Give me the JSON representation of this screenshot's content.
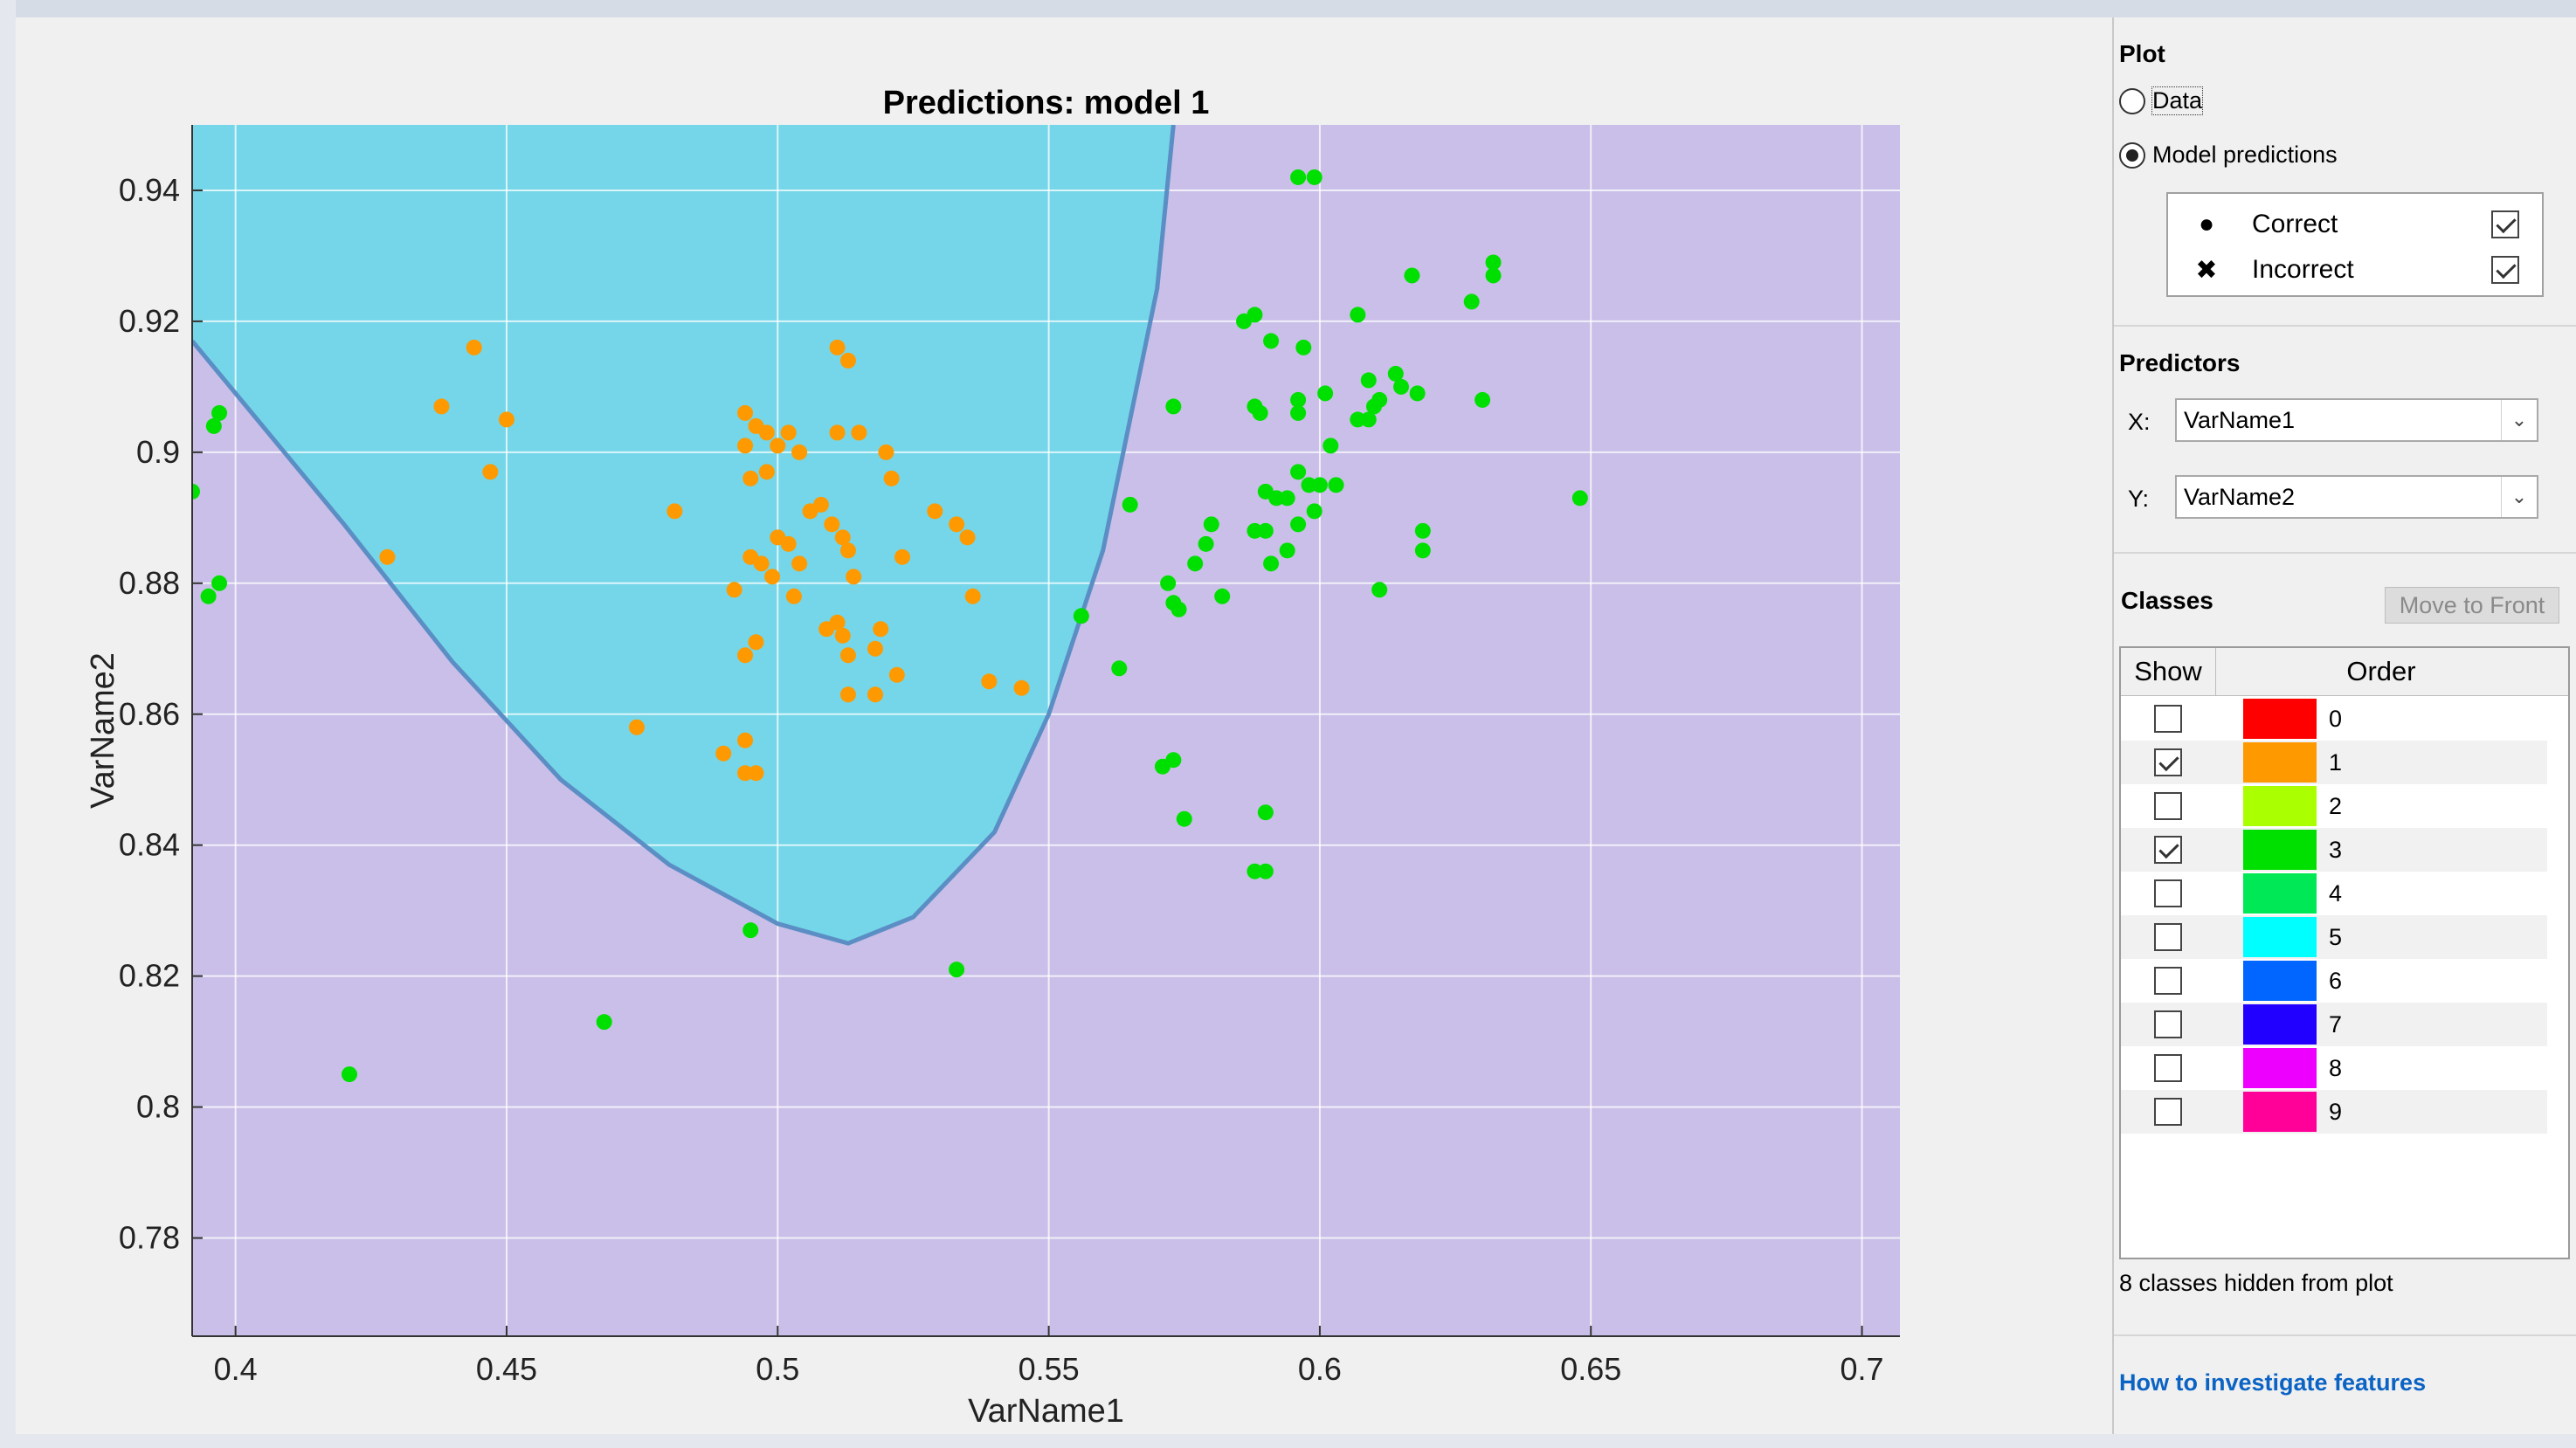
{
  "plot": {
    "title": "Predictions: model 1",
    "xlabel": "VarName1",
    "ylabel": "VarName2"
  },
  "chart_data": {
    "type": "scatter",
    "title": "Predictions: model 1",
    "xlabel": "VarName1",
    "ylabel": "VarName2",
    "xlim": [
      0.392,
      0.707
    ],
    "ylim": [
      0.765,
      0.95
    ],
    "xticks": [
      0.4,
      0.45,
      0.5,
      0.55,
      0.6,
      0.65,
      0.7
    ],
    "xtick_labels": [
      "0.4",
      "0.45",
      "0.5",
      "0.55",
      "0.6",
      "0.65",
      "0.7"
    ],
    "yticks": [
      0.78,
      0.8,
      0.82,
      0.84,
      0.86,
      0.88,
      0.9,
      0.92,
      0.94
    ],
    "ytick_labels": [
      "0.78",
      "0.8",
      "0.82",
      "0.84",
      "0.86",
      "0.88",
      "0.9",
      "0.92",
      "0.94"
    ],
    "grid": true,
    "regions": [
      {
        "class": "3",
        "color": "#c9bfe8"
      },
      {
        "class": "1",
        "color": "#74d6e8"
      }
    ],
    "boundary_color": "#5b8ec4",
    "decision_boundary": [
      [
        0.392,
        0.917
      ],
      [
        0.4,
        0.909
      ],
      [
        0.42,
        0.889
      ],
      [
        0.44,
        0.868
      ],
      [
        0.46,
        0.85
      ],
      [
        0.48,
        0.837
      ],
      [
        0.5,
        0.828
      ],
      [
        0.513,
        0.825
      ],
      [
        0.525,
        0.829
      ],
      [
        0.54,
        0.842
      ],
      [
        0.55,
        0.86
      ],
      [
        0.56,
        0.885
      ],
      [
        0.57,
        0.925
      ],
      [
        0.573,
        0.95
      ]
    ],
    "series": [
      {
        "name": "1",
        "color": "#ff9900",
        "points": [
          [
            0.444,
            0.916
          ],
          [
            0.438,
            0.907
          ],
          [
            0.45,
            0.905
          ],
          [
            0.447,
            0.897
          ],
          [
            0.428,
            0.884
          ],
          [
            0.481,
            0.891
          ],
          [
            0.474,
            0.858
          ],
          [
            0.49,
            0.854
          ],
          [
            0.494,
            0.856
          ],
          [
            0.494,
            0.851
          ],
          [
            0.496,
            0.851
          ],
          [
            0.494,
            0.869
          ],
          [
            0.496,
            0.871
          ],
          [
            0.492,
            0.879
          ],
          [
            0.495,
            0.884
          ],
          [
            0.495,
            0.896
          ],
          [
            0.494,
            0.906
          ],
          [
            0.496,
            0.904
          ],
          [
            0.494,
            0.901
          ],
          [
            0.498,
            0.903
          ],
          [
            0.5,
            0.901
          ],
          [
            0.502,
            0.903
          ],
          [
            0.498,
            0.897
          ],
          [
            0.5,
            0.887
          ],
          [
            0.502,
            0.886
          ],
          [
            0.497,
            0.883
          ],
          [
            0.499,
            0.881
          ],
          [
            0.504,
            0.883
          ],
          [
            0.503,
            0.878
          ],
          [
            0.506,
            0.891
          ],
          [
            0.508,
            0.892
          ],
          [
            0.504,
            0.9
          ],
          [
            0.511,
            0.903
          ],
          [
            0.515,
            0.903
          ],
          [
            0.511,
            0.916
          ],
          [
            0.513,
            0.914
          ],
          [
            0.512,
            0.887
          ],
          [
            0.513,
            0.885
          ],
          [
            0.51,
            0.889
          ],
          [
            0.514,
            0.881
          ],
          [
            0.509,
            0.873
          ],
          [
            0.511,
            0.874
          ],
          [
            0.512,
            0.872
          ],
          [
            0.513,
            0.869
          ],
          [
            0.513,
            0.863
          ],
          [
            0.518,
            0.863
          ],
          [
            0.519,
            0.873
          ],
          [
            0.518,
            0.87
          ],
          [
            0.52,
            0.9
          ],
          [
            0.521,
            0.896
          ],
          [
            0.522,
            0.866
          ],
          [
            0.523,
            0.884
          ],
          [
            0.529,
            0.891
          ],
          [
            0.533,
            0.889
          ],
          [
            0.535,
            0.887
          ],
          [
            0.536,
            0.878
          ],
          [
            0.539,
            0.865
          ],
          [
            0.545,
            0.864
          ]
        ]
      },
      {
        "name": "3",
        "color": "#00e000",
        "points": [
          [
            0.392,
            0.894
          ],
          [
            0.395,
            0.878
          ],
          [
            0.397,
            0.88
          ],
          [
            0.396,
            0.904
          ],
          [
            0.397,
            0.906
          ],
          [
            0.421,
            0.805
          ],
          [
            0.468,
            0.813
          ],
          [
            0.495,
            0.827
          ],
          [
            0.533,
            0.821
          ],
          [
            0.556,
            0.875
          ],
          [
            0.563,
            0.867
          ],
          [
            0.565,
            0.892
          ],
          [
            0.571,
            0.852
          ],
          [
            0.573,
            0.853
          ],
          [
            0.572,
            0.88
          ],
          [
            0.573,
            0.877
          ],
          [
            0.574,
            0.876
          ],
          [
            0.573,
            0.907
          ],
          [
            0.575,
            0.844
          ],
          [
            0.577,
            0.883
          ],
          [
            0.579,
            0.886
          ],
          [
            0.58,
            0.889
          ],
          [
            0.582,
            0.878
          ],
          [
            0.586,
            0.92
          ],
          [
            0.588,
            0.921
          ],
          [
            0.588,
            0.907
          ],
          [
            0.589,
            0.906
          ],
          [
            0.588,
            0.836
          ],
          [
            0.59,
            0.836
          ],
          [
            0.59,
            0.845
          ],
          [
            0.588,
            0.888
          ],
          [
            0.59,
            0.888
          ],
          [
            0.59,
            0.894
          ],
          [
            0.592,
            0.893
          ],
          [
            0.594,
            0.893
          ],
          [
            0.591,
            0.883
          ],
          [
            0.594,
            0.885
          ],
          [
            0.596,
            0.897
          ],
          [
            0.598,
            0.895
          ],
          [
            0.6,
            0.895
          ],
          [
            0.596,
            0.889
          ],
          [
            0.599,
            0.891
          ],
          [
            0.591,
            0.917
          ],
          [
            0.597,
            0.916
          ],
          [
            0.596,
            0.906
          ],
          [
            0.596,
            0.908
          ],
          [
            0.601,
            0.909
          ],
          [
            0.602,
            0.901
          ],
          [
            0.603,
            0.895
          ],
          [
            0.596,
            0.942
          ],
          [
            0.599,
            0.942
          ],
          [
            0.607,
            0.921
          ],
          [
            0.607,
            0.905
          ],
          [
            0.609,
            0.905
          ],
          [
            0.61,
            0.907
          ],
          [
            0.611,
            0.908
          ],
          [
            0.609,
            0.911
          ],
          [
            0.611,
            0.879
          ],
          [
            0.614,
            0.912
          ],
          [
            0.615,
            0.91
          ],
          [
            0.617,
            0.927
          ],
          [
            0.618,
            0.909
          ],
          [
            0.619,
            0.885
          ],
          [
            0.619,
            0.888
          ],
          [
            0.628,
            0.923
          ],
          [
            0.63,
            0.908
          ],
          [
            0.632,
            0.929
          ],
          [
            0.632,
            0.927
          ],
          [
            0.648,
            0.893
          ]
        ]
      }
    ]
  },
  "sidebar": {
    "plot_title": "Plot",
    "radio_data": "Data",
    "radio_predictions": "Model predictions",
    "radio_selected": "predictions",
    "legend": {
      "correct_label": "Correct",
      "correct_checked": true,
      "correct_marker": "●",
      "incorrect_label": "Incorrect",
      "incorrect_checked": true,
      "incorrect_marker": "✖"
    },
    "predictors_title": "Predictors",
    "x_label": "X:",
    "x_value": "VarName1",
    "y_label": "Y:",
    "y_value": "VarName2",
    "classes_title": "Classes",
    "move_button": "Move to Front",
    "table": {
      "show_header": "Show",
      "order_header": "Order",
      "rows": [
        {
          "label": "0",
          "color": "#ff0000",
          "checked": false
        },
        {
          "label": "1",
          "color": "#ff9900",
          "checked": true
        },
        {
          "label": "2",
          "color": "#aaff00",
          "checked": false
        },
        {
          "label": "3",
          "color": "#00e000",
          "checked": true
        },
        {
          "label": "4",
          "color": "#00e855",
          "checked": false
        },
        {
          "label": "5",
          "color": "#00ffff",
          "checked": false
        },
        {
          "label": "6",
          "color": "#0066ff",
          "checked": false
        },
        {
          "label": "7",
          "color": "#2200ff",
          "checked": false
        },
        {
          "label": "8",
          "color": "#ee00ff",
          "checked": false
        },
        {
          "label": "9",
          "color": "#ff0099",
          "checked": false
        }
      ]
    },
    "hidden_note": "8 classes hidden from plot",
    "help_link": "How to investigate features"
  }
}
